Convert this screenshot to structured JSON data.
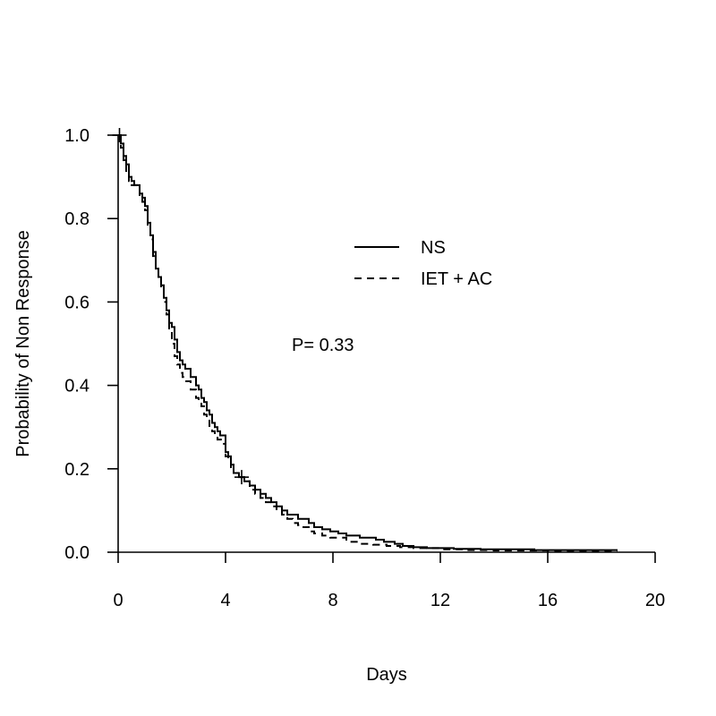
{
  "chart_data": {
    "type": "line",
    "subtype": "kaplan-meier step curves",
    "xlabel": "Days",
    "ylabel": "Probability of Non Response",
    "xlim": [
      0,
      20
    ],
    "ylim": [
      0,
      1
    ],
    "x_ticks": [
      "0",
      "4",
      "8",
      "12",
      "16",
      "20"
    ],
    "y_ticks": [
      "0.0",
      "0.2",
      "0.4",
      "0.6",
      "0.8",
      "1.0"
    ],
    "grid": false,
    "legend_position": "top-right",
    "annotation": "P= 0.33",
    "series": [
      {
        "name": "NS",
        "line_style": "solid",
        "x": [
          0,
          0.1,
          0.2,
          0.3,
          0.4,
          0.5,
          0.6,
          0.8,
          0.9,
          1.0,
          1.1,
          1.2,
          1.3,
          1.4,
          1.5,
          1.6,
          1.7,
          1.8,
          1.9,
          2.0,
          2.1,
          2.2,
          2.3,
          2.4,
          2.5,
          2.7,
          2.9,
          3.0,
          3.1,
          3.2,
          3.3,
          3.4,
          3.5,
          3.6,
          3.7,
          3.8,
          3.9,
          4.0,
          4.1,
          4.2,
          4.3,
          4.5,
          4.7,
          4.9,
          5.1,
          5.3,
          5.5,
          5.7,
          5.9,
          6.1,
          6.3,
          6.5,
          6.7,
          6.9,
          7.1,
          7.3,
          7.6,
          7.9,
          8.2,
          8.5,
          9.0,
          9.3,
          9.6,
          9.9,
          10.3,
          10.6,
          11.0,
          11.5,
          12.5,
          13.5,
          15.5,
          18.6
        ],
        "y": [
          1.0,
          0.98,
          0.95,
          0.93,
          0.9,
          0.89,
          0.88,
          0.86,
          0.85,
          0.83,
          0.79,
          0.76,
          0.72,
          0.68,
          0.66,
          0.64,
          0.61,
          0.58,
          0.55,
          0.54,
          0.51,
          0.48,
          0.46,
          0.45,
          0.44,
          0.42,
          0.4,
          0.39,
          0.37,
          0.36,
          0.34,
          0.33,
          0.31,
          0.3,
          0.29,
          0.28,
          0.28,
          0.24,
          0.23,
          0.21,
          0.19,
          0.18,
          0.17,
          0.16,
          0.15,
          0.14,
          0.13,
          0.12,
          0.11,
          0.1,
          0.09,
          0.09,
          0.08,
          0.08,
          0.07,
          0.06,
          0.055,
          0.05,
          0.045,
          0.04,
          0.035,
          0.035,
          0.03,
          0.025,
          0.02,
          0.015,
          0.012,
          0.01,
          0.008,
          0.007,
          0.005,
          0.005
        ]
      },
      {
        "name": "IET + AC",
        "line_style": "dashed",
        "x": [
          0,
          0.1,
          0.2,
          0.3,
          0.4,
          0.5,
          0.7,
          0.8,
          0.9,
          1.0,
          1.1,
          1.2,
          1.3,
          1.4,
          1.5,
          1.6,
          1.7,
          1.8,
          1.9,
          2.0,
          2.1,
          2.2,
          2.3,
          2.4,
          2.5,
          2.7,
          2.9,
          3.0,
          3.1,
          3.2,
          3.3,
          3.4,
          3.5,
          3.6,
          3.7,
          3.8,
          3.9,
          4.0,
          4.1,
          4.2,
          4.3,
          4.5,
          4.7,
          4.9,
          5.1,
          5.3,
          5.5,
          5.7,
          5.9,
          6.1,
          6.3,
          6.5,
          6.7,
          6.9,
          7.1,
          7.3,
          7.6,
          7.9,
          8.5,
          9.0,
          9.5,
          10.0,
          10.5,
          11.0,
          12.0,
          13.0,
          14.0,
          16.0,
          18.6
        ],
        "y": [
          1.0,
          0.97,
          0.94,
          0.91,
          0.89,
          0.88,
          0.87,
          0.85,
          0.84,
          0.82,
          0.78,
          0.75,
          0.71,
          0.68,
          0.65,
          0.63,
          0.6,
          0.57,
          0.53,
          0.5,
          0.47,
          0.45,
          0.43,
          0.42,
          0.41,
          0.39,
          0.37,
          0.36,
          0.35,
          0.33,
          0.32,
          0.3,
          0.29,
          0.28,
          0.27,
          0.27,
          0.26,
          0.23,
          0.22,
          0.2,
          0.19,
          0.18,
          0.17,
          0.15,
          0.14,
          0.13,
          0.12,
          0.11,
          0.1,
          0.09,
          0.08,
          0.07,
          0.065,
          0.06,
          0.05,
          0.045,
          0.04,
          0.035,
          0.025,
          0.02,
          0.018,
          0.015,
          0.012,
          0.01,
          0.007,
          0.005,
          0.004,
          0.003,
          0.003
        ]
      }
    ],
    "censor_marks": [
      {
        "series": "NS",
        "x": 0.05,
        "y": 1.0
      },
      {
        "series": "NS",
        "x": 4.6,
        "y": 0.18
      }
    ]
  }
}
